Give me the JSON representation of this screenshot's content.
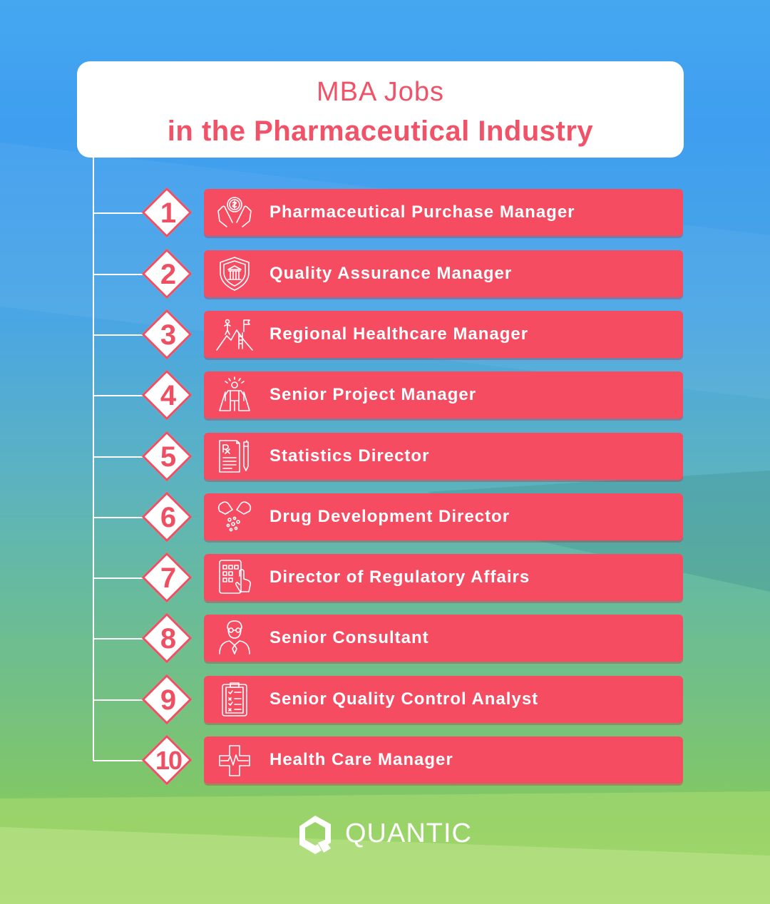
{
  "header": {
    "title_line1": "MBA Jobs",
    "title_line2": "in the Pharmaceutical Industry"
  },
  "jobs": [
    {
      "number": "1",
      "title": "Pharmaceutical Purchase Manager",
      "icon": "money-hands-icon"
    },
    {
      "number": "2",
      "title": "Quality Assurance Manager",
      "icon": "shield-bank-icon"
    },
    {
      "number": "3",
      "title": "Regional Healthcare Manager",
      "icon": "mountain-flag-icon"
    },
    {
      "number": "4",
      "title": "Senior Project Manager",
      "icon": "superhero-icon"
    },
    {
      "number": "5",
      "title": "Statistics Director",
      "icon": "prescription-pen-icon"
    },
    {
      "number": "6",
      "title": "Drug Development Director",
      "icon": "pills-icon"
    },
    {
      "number": "7",
      "title": "Director of Regulatory Affairs",
      "icon": "tablet-touch-icon"
    },
    {
      "number": "8",
      "title": "Senior Consultant",
      "icon": "consultant-icon"
    },
    {
      "number": "9",
      "title": "Senior Quality Control Analyst",
      "icon": "clipboard-checklist-icon"
    },
    {
      "number": "10",
      "title": "Health Care Manager",
      "icon": "medical-cross-icon"
    }
  ],
  "brand": {
    "name": "QUANTIC",
    "logo_icon": "quantic-logo-icon"
  },
  "colors": {
    "accent": "#f54c62",
    "title_text": "#f05268",
    "background_top": "#45a7f0",
    "background_bottom": "#9ad35f"
  }
}
